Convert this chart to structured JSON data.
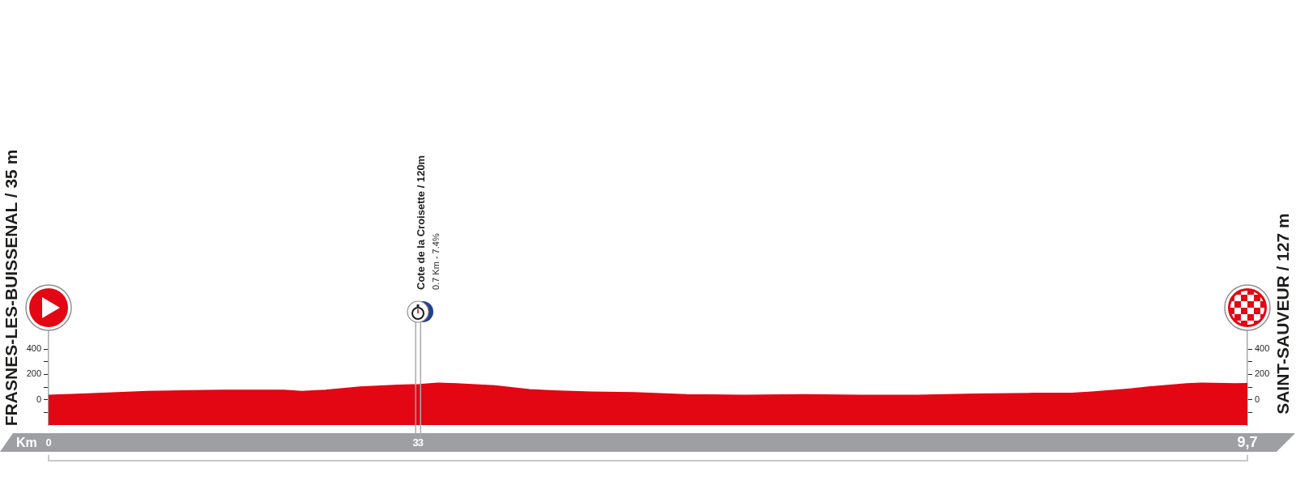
{
  "chart_data": {
    "type": "area",
    "xlabel": "Km",
    "x": [
      0,
      0.27,
      0.8,
      1.43,
      1.9,
      2.05,
      2.24,
      2.52,
      2.83,
      3,
      3.15,
      3.3,
      3.61,
      3.89,
      4.08,
      4.39,
      4.74,
      5.16,
      5.63,
      6.1,
      6.57,
      7.03,
      7.5,
      7.97,
      8.28,
      8.44,
      8.75,
      8.9,
      9.21,
      9.33,
      9.6,
      9.7
    ],
    "values": [
      35,
      45,
      65,
      75,
      75,
      65,
      75,
      100,
      115,
      120,
      130,
      125,
      110,
      80,
      70,
      60,
      55,
      40,
      35,
      40,
      35,
      35,
      45,
      50,
      50,
      60,
      85,
      100,
      125,
      130,
      125,
      127
    ],
    "color": "#e30613",
    "xlim": [
      0,
      9.7
    ],
    "xticks": [
      0,
      {
        "value": 2.97,
        "label": "3"
      },
      {
        "value": 3.01,
        "label": "3"
      },
      {
        "value": 9.7,
        "label": "9,7"
      }
    ],
    "ylim": [
      -200,
      560
    ],
    "yticks": [
      {
        "value": -100,
        "label": null
      },
      0,
      {
        "value": 100,
        "label": null
      },
      200,
      {
        "value": 300,
        "label": null
      },
      400
    ],
    "y2lim": [
      -200,
      560
    ],
    "y2ticks": [
      {
        "value": -100,
        "label": null
      },
      0,
      {
        "value": 100,
        "label": null
      },
      200,
      {
        "value": 300,
        "label": null
      },
      400
    ],
    "bands": [
      {
        "axis": "y",
        "from": -200,
        "to": 0,
        "color": "#e30613"
      }
    ],
    "ref_lines": [
      {
        "axis": "x",
        "value": 2.97,
        "color": "#a7a9ac",
        "label": "Cote de la Croisette / 120m"
      },
      {
        "axis": "x",
        "value": 3.01,
        "color": "#a7a9ac",
        "label": "0.7 Km - 7.4%"
      }
    ],
    "annotations": [
      {
        "text": "FRASNES-LES-BUISSENAL / 35 m",
        "x": 0,
        "y": 35
      },
      {
        "text": "SAINT-SAUVEUR / 127 m",
        "x": 9.7,
        "y": 127
      }
    ]
  }
}
